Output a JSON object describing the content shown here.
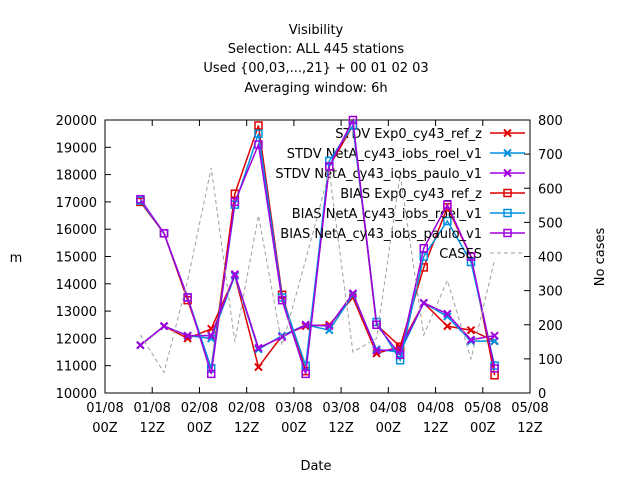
{
  "chart_data": {
    "type": "line",
    "title": "Visibility",
    "subtitle": [
      "Selection: ALL    445 stations",
      "Used {00,03,...,21} + 00 01 02 03",
      "Averaging window:  6h"
    ],
    "x_label": "Date",
    "y_label": "m",
    "y2_label": "No cases",
    "x": [
      9,
      15,
      21,
      27,
      33,
      39,
      45,
      51,
      57,
      63,
      69,
      75,
      81,
      87,
      93,
      99
    ],
    "xlim": [
      0,
      108
    ],
    "xticks": [
      {
        "value": 0,
        "label": "01/08\n00Z"
      },
      {
        "value": 12,
        "label": "01/08\n12Z"
      },
      {
        "value": 24,
        "label": "02/08\n00Z"
      },
      {
        "value": 36,
        "label": "02/08\n12Z"
      },
      {
        "value": 48,
        "label": "03/08\n00Z"
      },
      {
        "value": 60,
        "label": "03/08\n12Z"
      },
      {
        "value": 72,
        "label": "04/08\n00Z"
      },
      {
        "value": 84,
        "label": "04/08\n12Z"
      },
      {
        "value": 96,
        "label": "05/08\n00Z"
      },
      {
        "value": 108,
        "label": "05/08\n12Z"
      }
    ],
    "ylim": [
      10000,
      20000
    ],
    "yticks": [
      10000,
      11000,
      12000,
      13000,
      14000,
      15000,
      16000,
      17000,
      18000,
      19000,
      20000
    ],
    "y2lim": [
      0,
      800
    ],
    "y2ticks": [
      0,
      100,
      200,
      300,
      400,
      500,
      600,
      700,
      800
    ],
    "legend": "top-right",
    "series": [
      {
        "name": "STDV Exp0_cy43_ref_z",
        "color": "#e00000",
        "marker": "x",
        "values": [
          11750,
          12450,
          12000,
          12350,
          14300,
          10950,
          12100,
          12450,
          12500,
          13500,
          11450,
          11700,
          13300,
          12450,
          12300,
          11900
        ]
      },
      {
        "name": "STDV NetA_cy43_iobs_roel_v1",
        "color": "#0090e0",
        "marker": "x",
        "values": [
          11750,
          12450,
          12100,
          12000,
          14300,
          11600,
          12100,
          12500,
          12300,
          13600,
          11600,
          11500,
          13300,
          12800,
          11900,
          11900
        ]
      },
      {
        "name": "STDV NetA_cy43_iobs_paulo_v1",
        "color": "#a000e0",
        "marker": "x",
        "values": [
          11750,
          12450,
          12100,
          12100,
          14350,
          11650,
          12050,
          12500,
          12450,
          13650,
          11550,
          11600,
          13300,
          12900,
          11950,
          12100
        ]
      },
      {
        "name": "BIAS Exp0_cy43_ref_z",
        "color": "#e00000",
        "marker": "square",
        "values": [
          17000,
          15850,
          13400,
          10900,
          17300,
          19800,
          13600,
          10800,
          18300,
          19800,
          12500,
          11700,
          14600,
          16800,
          15000,
          10650
        ]
      },
      {
        "name": "BIAS NetA_cy43_iobs_roel_v1",
        "color": "#0090e0",
        "marker": "square",
        "values": [
          17050,
          15850,
          13500,
          10900,
          16900,
          19500,
          13500,
          11000,
          18500,
          19800,
          12600,
          11200,
          15000,
          16300,
          14800,
          11000
        ]
      },
      {
        "name": "BIAS NetA_cy43_iobs_paulo_v1",
        "color": "#a000e0",
        "marker": "square",
        "values": [
          17100,
          15850,
          13500,
          10700,
          17000,
          19100,
          13400,
          10700,
          18300,
          20000,
          12500,
          11400,
          15300,
          16900,
          15000,
          10900
        ]
      },
      {
        "name": "CASES",
        "color": "#a0a0a0",
        "marker": "none",
        "dash": true,
        "axis": "y2",
        "values": [
          170,
          60,
          330,
          660,
          150,
          520,
          140,
          390,
          650,
          120,
          160,
          640,
          170,
          330,
          100,
          390
        ]
      }
    ]
  }
}
